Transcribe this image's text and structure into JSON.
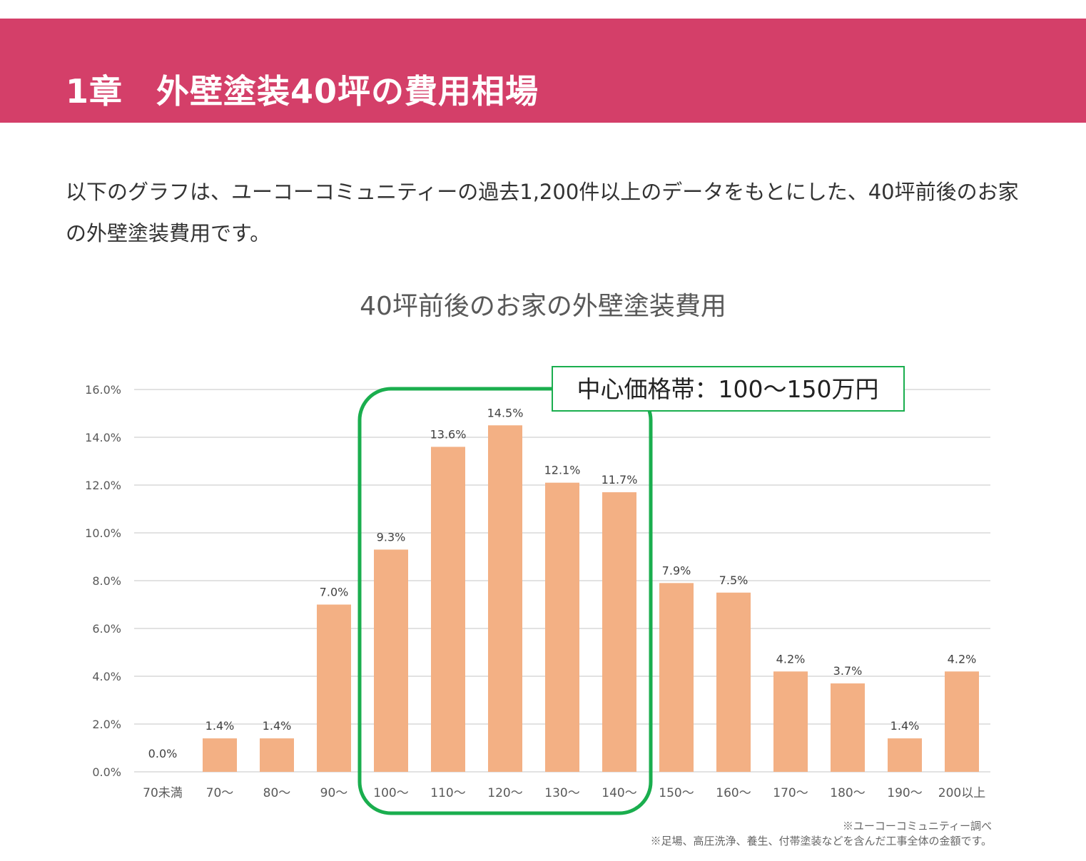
{
  "header": {
    "title": "1章　外壁塗装40坪の費用相場"
  },
  "intro": {
    "text": "以下のグラフは、ユーコーコミュニティーの過去1,200件以上のデータをもとにした、40坪前後のお家の外壁塗装費用です。"
  },
  "colors": {
    "header_bg": "#d43f69",
    "bar": "#f3b084",
    "highlight": "#1aae4e",
    "grid": "#d9d9d9"
  },
  "chart_data": {
    "type": "bar",
    "title": "40坪前後のお家の外壁塗装費用",
    "categories": [
      "70未満",
      "70〜",
      "80〜",
      "90〜",
      "100〜",
      "110〜",
      "120〜",
      "130〜",
      "140〜",
      "150〜",
      "160〜",
      "170〜",
      "180〜",
      "190〜",
      "200以上"
    ],
    "values": [
      0.0,
      1.4,
      1.4,
      7.0,
      9.3,
      13.6,
      14.5,
      12.1,
      11.7,
      7.9,
      7.5,
      4.2,
      3.7,
      1.4,
      4.2
    ],
    "value_labels": [
      "0.0%",
      "1.4%",
      "1.4%",
      "7.0%",
      "9.3%",
      "13.6%",
      "14.5%",
      "12.1%",
      "11.7%",
      "7.9%",
      "7.5%",
      "4.2%",
      "3.7%",
      "1.4%",
      "4.2%"
    ],
    "ylim": [
      0,
      16
    ],
    "yticks": [
      0,
      2,
      4,
      6,
      8,
      10,
      12,
      14,
      16
    ],
    "ytick_labels": [
      "0.0%",
      "2.0%",
      "4.0%",
      "6.0%",
      "8.0%",
      "10.0%",
      "12.0%",
      "14.0%",
      "16.0%"
    ],
    "grid": true,
    "highlight": {
      "label": "中心価格帯：100〜150万円",
      "from_category": "100〜",
      "to_category": "140〜"
    }
  },
  "notes": {
    "line1": "※ユーコーコミュニティー調べ",
    "line2": "※足場、高圧洗浄、養生、付帯塗装などを含んだ工事全体の金額です。"
  }
}
